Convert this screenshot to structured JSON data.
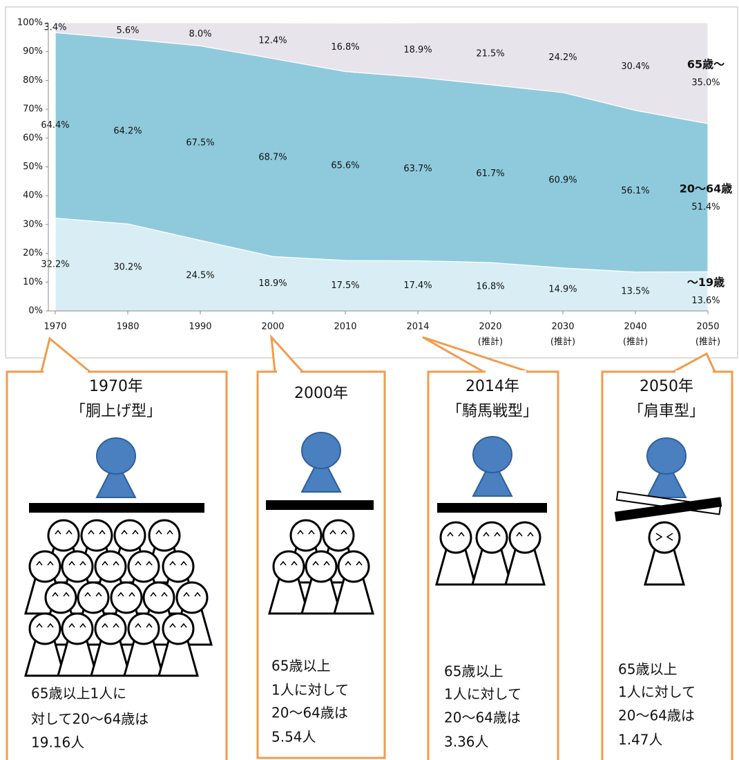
{
  "chart_data": {
    "type": "area",
    "stacked": true,
    "categories": [
      "1970",
      "1980",
      "1990",
      "2000",
      "2010",
      "2014",
      "2020",
      "2030",
      "2040",
      "2050"
    ],
    "category_sublabels": [
      null,
      null,
      null,
      null,
      null,
      null,
      "(推計)",
      "(推計)",
      "(推計)",
      "(推計)"
    ],
    "series": [
      {
        "name": "～19歳",
        "color": "#d8eef4",
        "values": [
          32.2,
          30.2,
          24.5,
          18.9,
          17.5,
          17.4,
          16.8,
          14.9,
          13.5,
          13.6
        ],
        "value_labels": [
          "32.2%",
          "30.2%",
          "24.5%",
          "18.9%",
          "17.5%",
          "17.4%",
          "16.8%",
          "14.9%",
          "13.5%",
          "13.6%"
        ]
      },
      {
        "name": "20～64歳",
        "color": "#8fcadc",
        "values": [
          64.4,
          64.2,
          67.5,
          68.7,
          65.6,
          63.7,
          61.7,
          60.9,
          56.1,
          51.4
        ],
        "value_labels": [
          "64.4%",
          "64.2%",
          "67.5%",
          "68.7%",
          "65.6%",
          "63.7%",
          "61.7%",
          "60.9%",
          "56.1%",
          "51.4%"
        ]
      },
      {
        "name": "65歳～",
        "color": "#e7e4eb",
        "values": [
          3.4,
          5.6,
          8.0,
          12.4,
          16.8,
          18.9,
          21.5,
          24.2,
          30.4,
          35.0
        ],
        "value_labels": [
          "3.4%",
          "5.6%",
          "8.0%",
          "12.4%",
          "16.8%",
          "18.9%",
          "21.5%",
          "24.2%",
          "30.4%",
          "35.0%"
        ]
      }
    ],
    "ylim": [
      0,
      100
    ],
    "yticks": [
      {
        "value": 0,
        "label": "0%"
      },
      {
        "value": 10,
        "label": "10%"
      },
      {
        "value": 20,
        "label": "20%"
      },
      {
        "value": 30,
        "label": "30%"
      },
      {
        "value": 40,
        "label": "40%"
      },
      {
        "value": 50,
        "label": "50%"
      },
      {
        "value": 60,
        "label": "60%"
      },
      {
        "value": 70,
        "label": "70%"
      },
      {
        "value": 80,
        "label": "80%"
      },
      {
        "value": 90,
        "label": "90%"
      },
      {
        "value": 100,
        "label": "100%"
      }
    ]
  },
  "panels": [
    {
      "title": [
        "1970年",
        "「胴上げ型」"
      ],
      "text": [
        "65歳以上1人に",
        "対して20～64歳は",
        "19.16人"
      ]
    },
    {
      "title": [
        "2000年"
      ],
      "text": [
        "65歳以上",
        "1人に対して",
        "20～64歳は",
        "5.54人"
      ]
    },
    {
      "title": [
        "2014年",
        "「騎馬戦型」"
      ],
      "text": [
        "65歳以上",
        "1人に対して",
        "20～64歳は",
        "3.36人"
      ]
    },
    {
      "title": [
        "2050年",
        "「肩車型」"
      ],
      "text": [
        "65歳以上",
        "1人に対して",
        "20～64歳は",
        "1.47人"
      ]
    }
  ]
}
